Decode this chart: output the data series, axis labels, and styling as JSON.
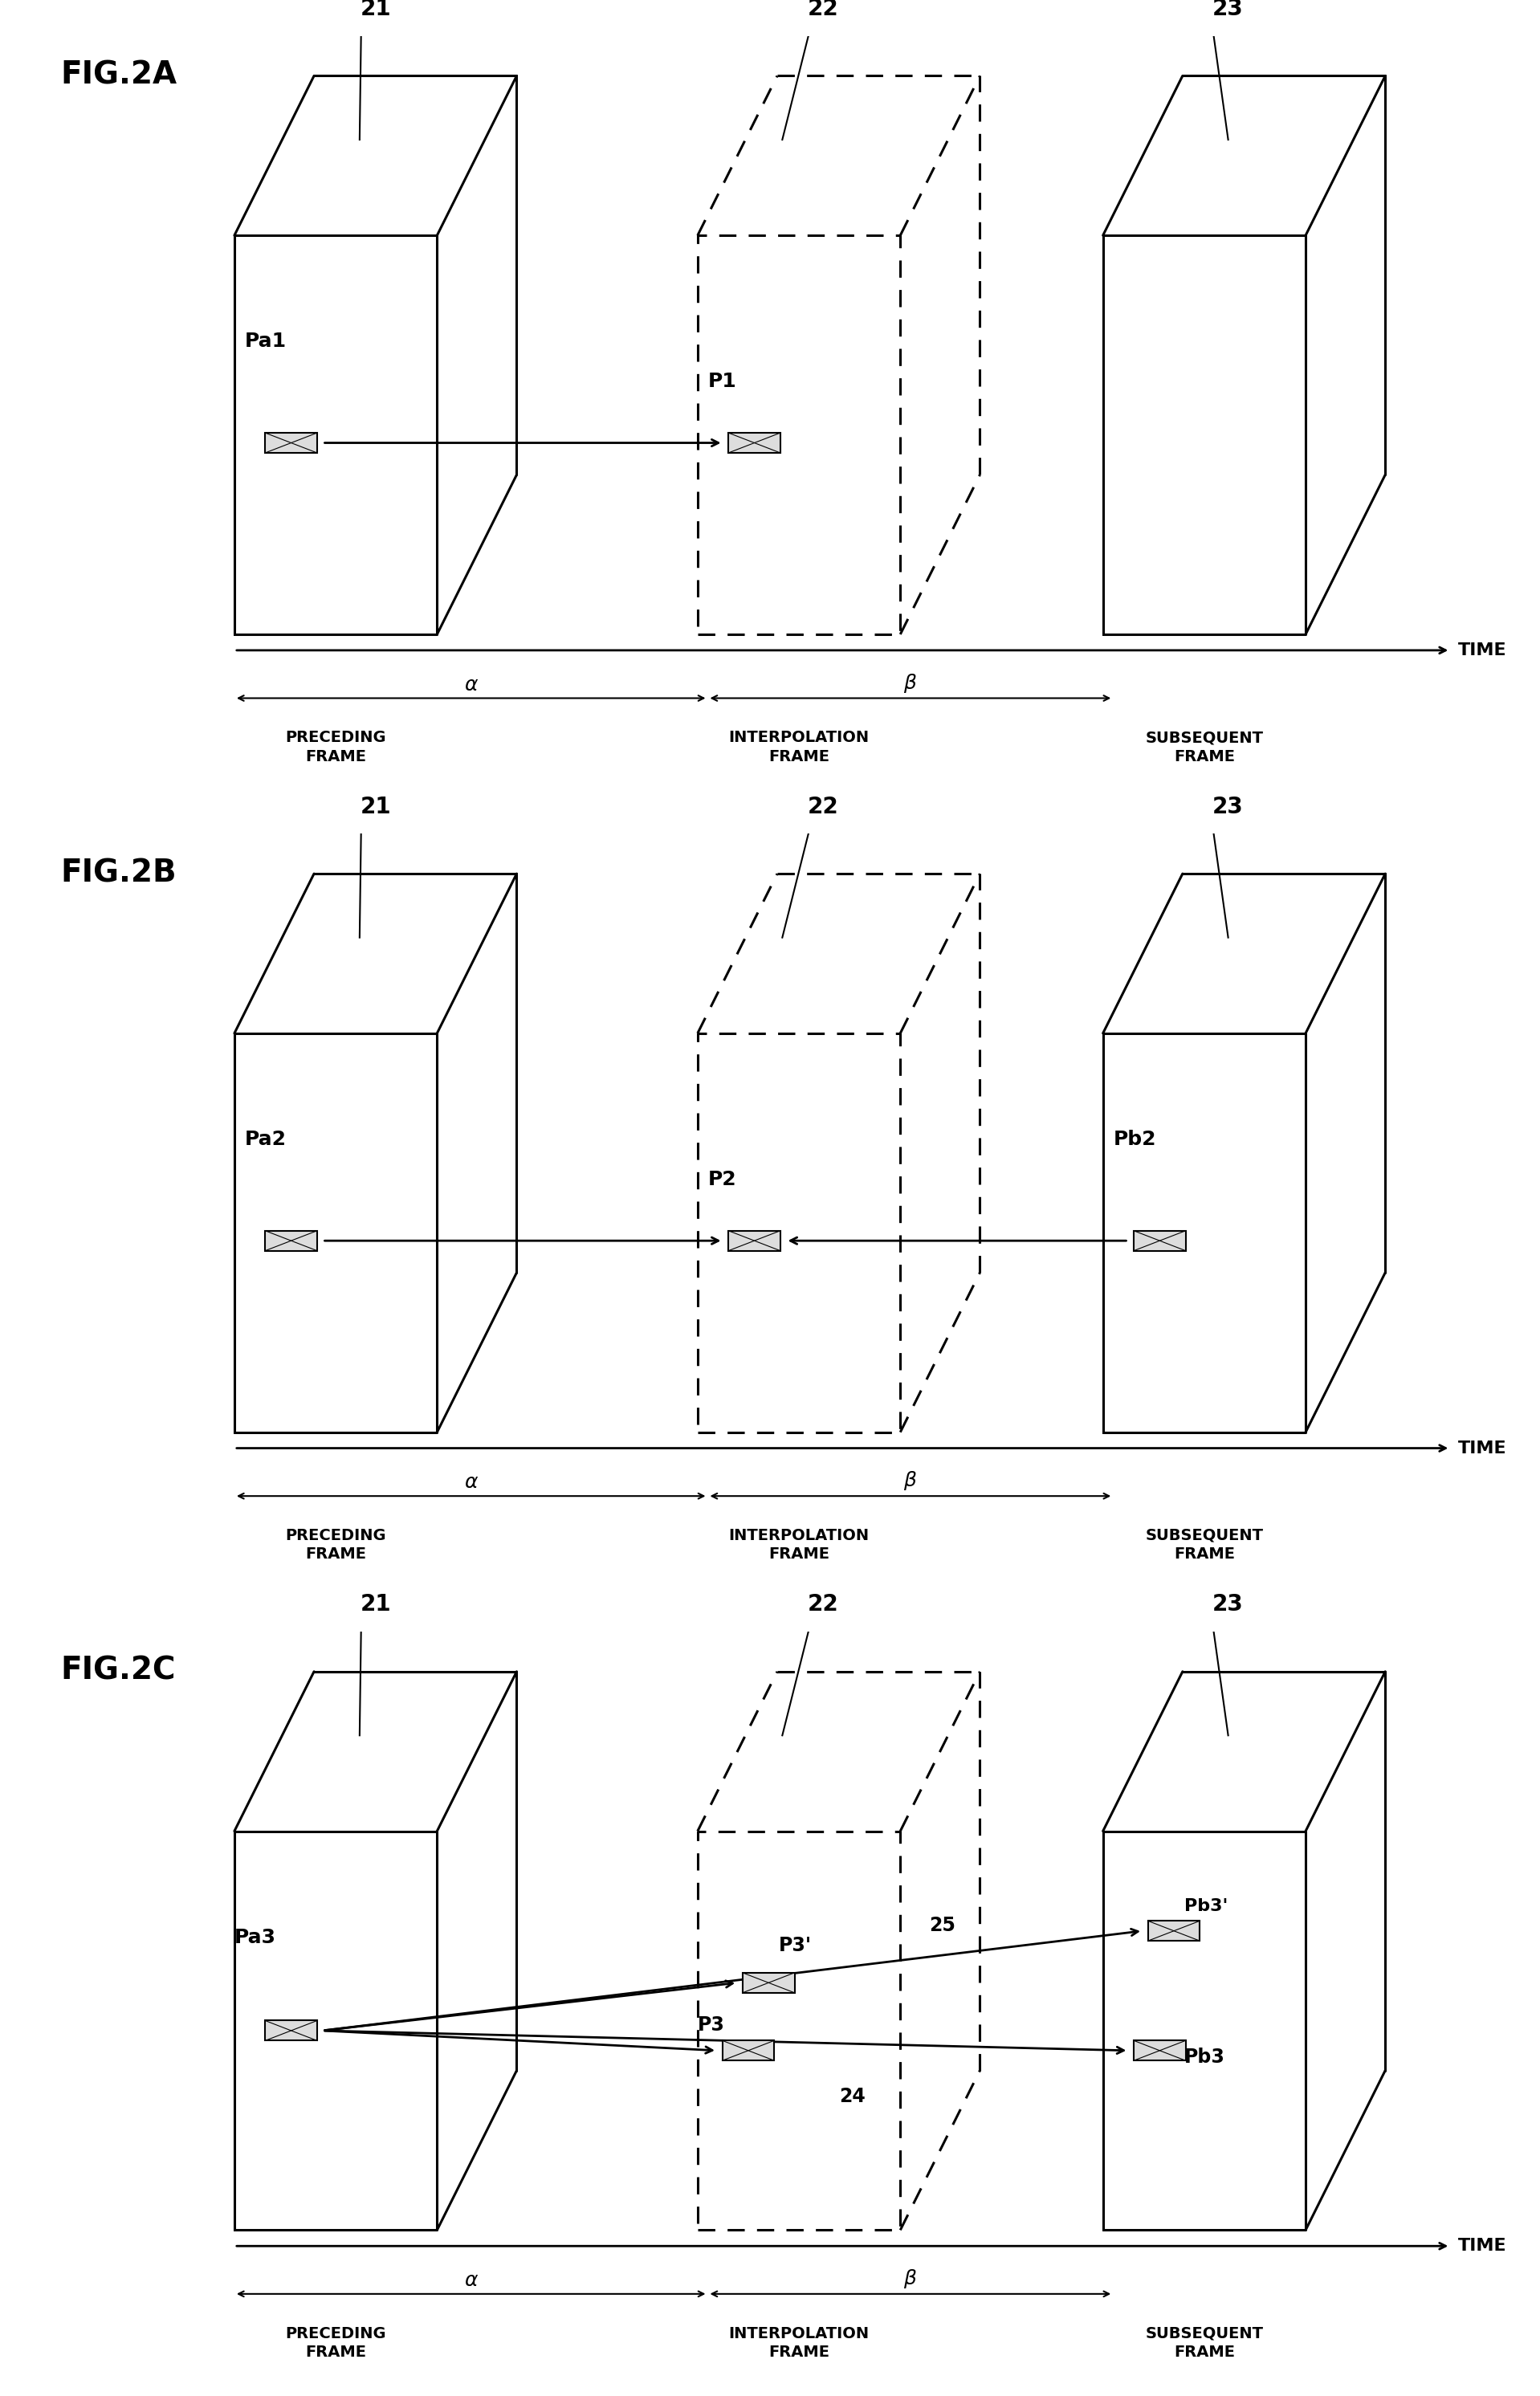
{
  "fig_labels": [
    "FIG.2A",
    "FIG.2B",
    "FIG.2C"
  ],
  "frame_numbers": [
    "21",
    "22",
    "23"
  ],
  "point_labels_A": [
    "Pa1",
    "P1"
  ],
  "point_labels_B": [
    "Pa2",
    "P2",
    "Pb2"
  ],
  "point_labels_C": [
    "Pa3",
    "P3",
    "P3'",
    "Pb3",
    "Pb3'"
  ],
  "extra_labels_C": [
    "24",
    "25"
  ],
  "time_label": "TIME",
  "frame_text": [
    "PRECEDING\nFRAME",
    "INTERPOLATION\nFRAME",
    "SUBSEQUENT\nFRAME"
  ],
  "alpha_label": "α",
  "beta_label": "β",
  "bg_color": "#ffffff"
}
